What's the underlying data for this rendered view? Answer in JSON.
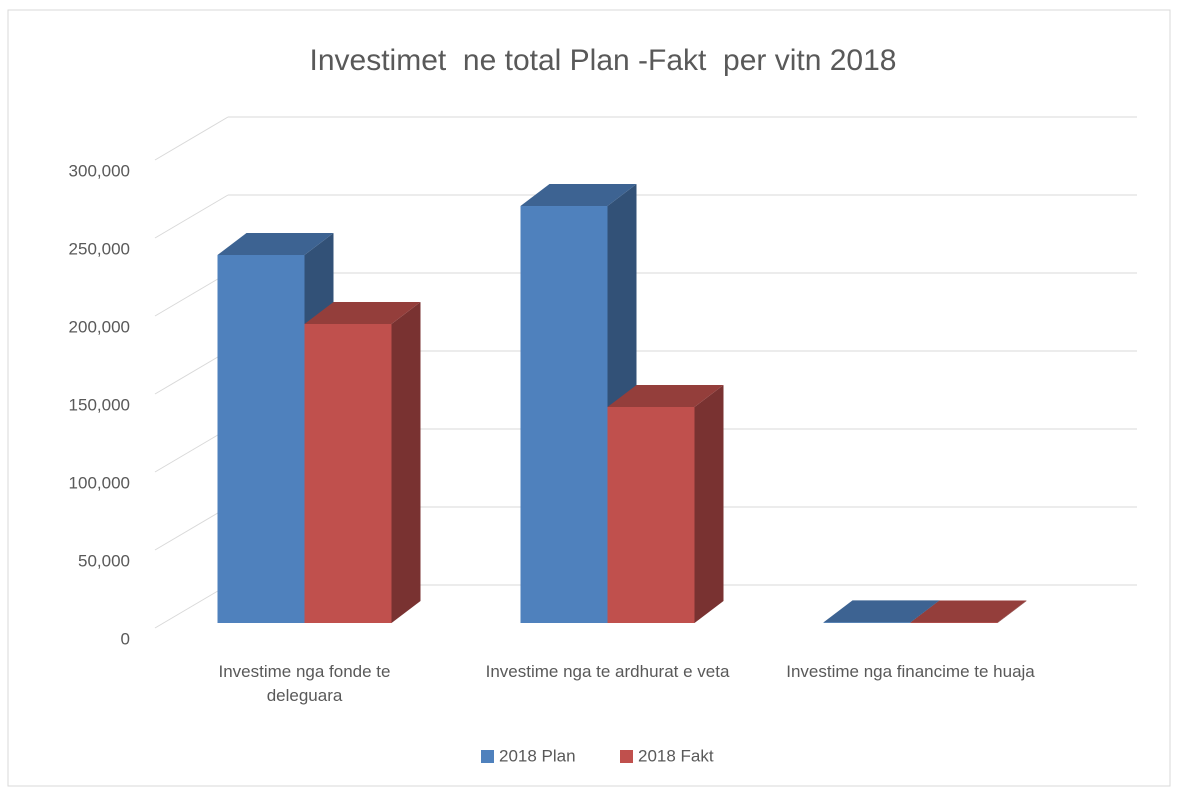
{
  "chart_data": {
    "type": "bar3d",
    "title": "Investimet  ne total Plan -Fakt  per vitn 2018",
    "categories": [
      "Investime nga fonde te deleguara",
      "Investime nga te ardhurat e veta",
      "Investime nga financime te huaja"
    ],
    "series": [
      {
        "name": "2018 Plan",
        "color": "#4f81bd",
        "values": [
          235900,
          267300,
          400
        ]
      },
      {
        "name": "2018 Fakt",
        "color": "#c0504d",
        "values": [
          191700,
          138500,
          300
        ]
      }
    ],
    "ylim": [
      0,
      300000
    ],
    "yticks": [
      0,
      {
        "value": 50000,
        "label": "50,000"
      },
      {
        "value": 100000,
        "label": "100,000"
      },
      {
        "value": 150000,
        "label": "150,000"
      },
      {
        "value": 200000,
        "label": "200,000"
      },
      {
        "value": 250000,
        "label": "250,000"
      },
      {
        "value": 300000,
        "label": "300,000"
      }
    ],
    "grid": true,
    "legend": "bottom"
  }
}
